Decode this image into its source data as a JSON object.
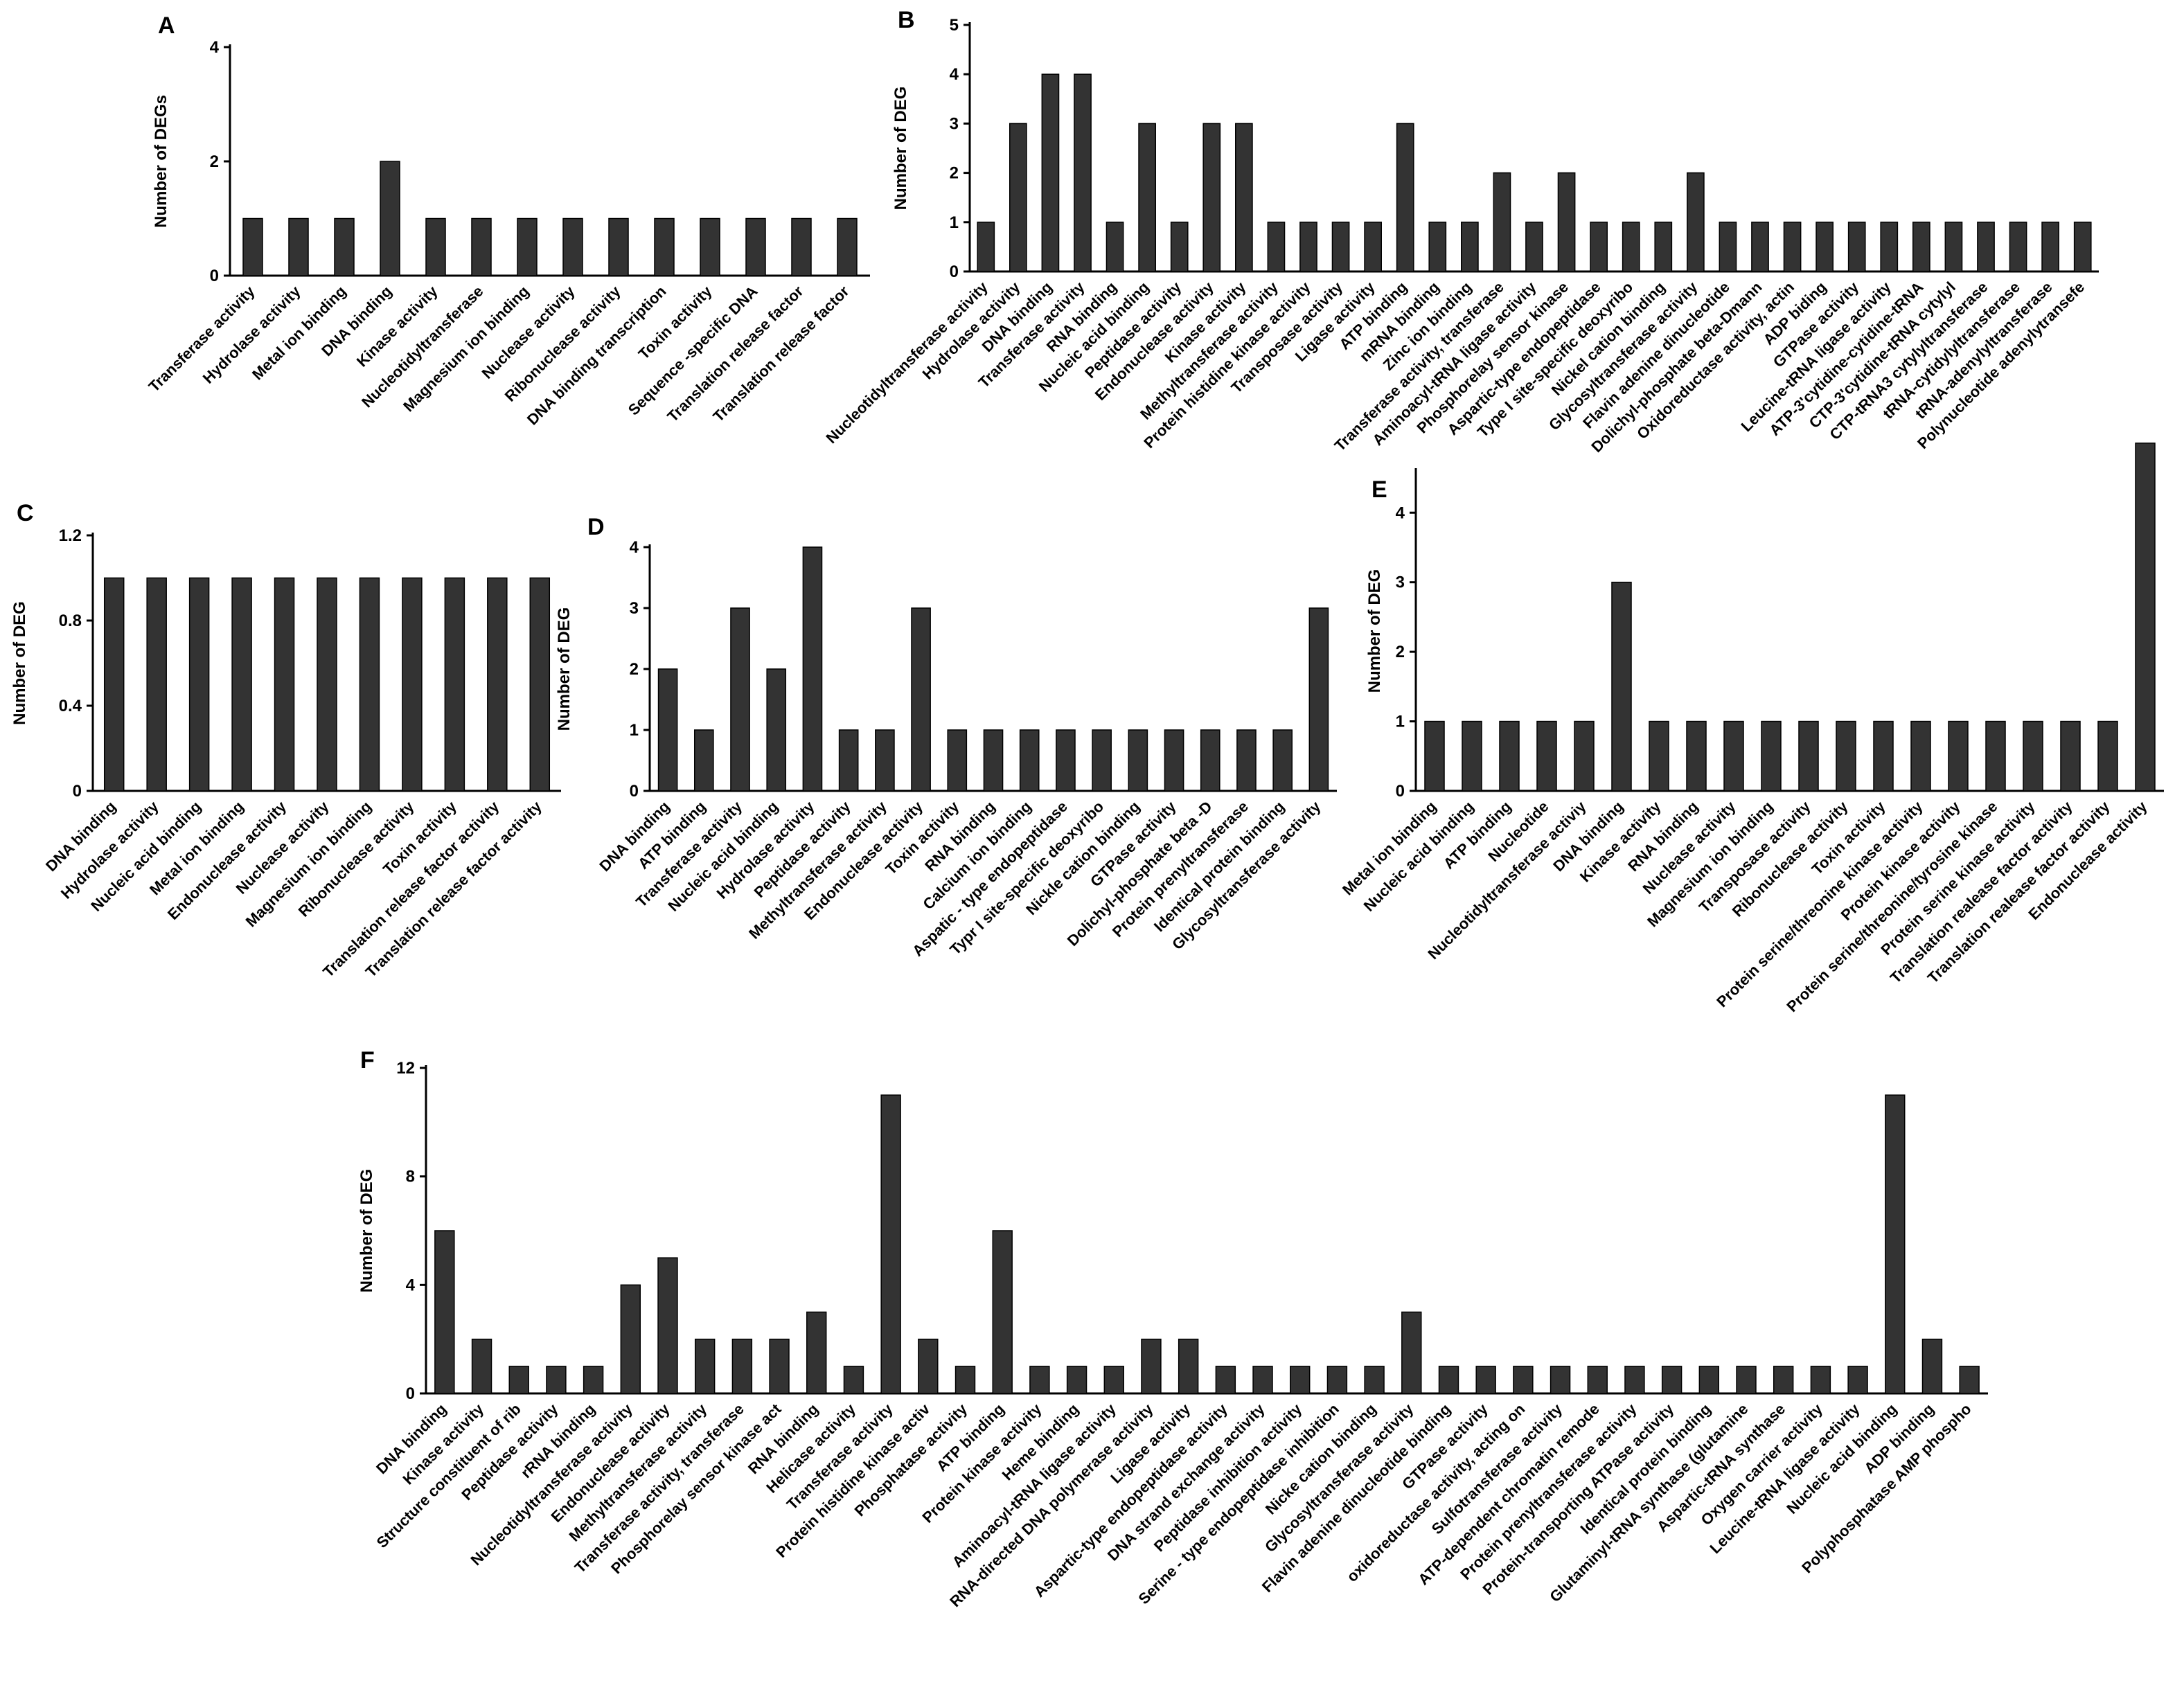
{
  "figure": {
    "colors": {
      "bar": "#333333",
      "axis": "#000000",
      "background": "#ffffff"
    }
  },
  "chart_data": [
    {
      "panel": "A",
      "type": "bar",
      "ylabel": "Number of DEGs",
      "ylim": [
        0,
        4
      ],
      "yticks": [
        0,
        2,
        4
      ],
      "grid": false,
      "categories": [
        "Transferase activity",
        "Hydrolase activity",
        "Metal ion binding",
        "DNA binding",
        "Kinase activity",
        "Nucleotidyltransferase",
        "Magnesium ion binding",
        "Nuclease activity",
        "Ribonuclease activity",
        "DNA binding transcription",
        "Toxin activity",
        "Sequence -specific DNA",
        "Translation release factor",
        "Translation release factor"
      ],
      "values": [
        1,
        1,
        1,
        2,
        1,
        1,
        1,
        1,
        1,
        1,
        1,
        1,
        1,
        1
      ]
    },
    {
      "panel": "B",
      "type": "bar",
      "ylabel": "Number of DEG",
      "ylim": [
        0,
        5
      ],
      "yticks": [
        0,
        1,
        2,
        3,
        4,
        5
      ],
      "grid": false,
      "categories": [
        "Nucleotidyltransferase activity",
        "Hydrolase activity",
        "DNA binding",
        "Transferase activity",
        "RNA binding",
        "Nucleic acid binding",
        "Peptidase activity",
        "Endonuclease activity",
        "Kinase activity",
        "Methyltransferase activity",
        "Protein histidine kinase activity",
        "Transposase activity",
        "Ligase activity",
        "ATP binding",
        "mRNA binding",
        "Zinc ion binding",
        "Transferase activity, transferase",
        "Aminoacyl-tRNA ligase activity",
        "Phosphorelay sensor kinase",
        "Aspartic-type endopeptidase",
        "Type I site-specific deoxyribo",
        "Nickel cation binding",
        "Glycosyltransferase activity",
        "Flavin adenine dinucleotide",
        "Dolichyl-phosphate beta-Dmann",
        "Oxidoreductase activity, actin",
        "ADP biding",
        "GTPase activity",
        "Leucine-tRNA ligase activity",
        "ATP-3'cytidine-cytidine-tRNA",
        "CTP-3'cytidine-tRNA cytylyl",
        "CTP-tRNA3 cytylyltransferase",
        "tRNA-cytidylyltransferase",
        "tRNA-adenylyltransferase",
        "Polynucleotide adenylytransefe"
      ],
      "values": [
        1,
        3,
        4,
        4,
        1,
        3,
        1,
        3,
        3,
        1,
        1,
        1,
        1,
        3,
        1,
        1,
        2,
        1,
        2,
        1,
        1,
        1,
        2,
        1,
        1,
        1,
        1,
        1,
        1,
        1,
        1,
        1,
        1,
        1,
        1
      ]
    },
    {
      "panel": "C",
      "type": "bar",
      "ylabel": "Number of DEG",
      "ylim": [
        0,
        1.2
      ],
      "yticks": [
        0,
        0.4,
        0.8,
        1.2
      ],
      "grid": false,
      "categories": [
        "DNA binding",
        "Hydrolase activity",
        "Nucleic acid binding",
        "Metal ion binding",
        "Endonuclease activity",
        "Nuclease  activity",
        "Magnesium ion binding",
        "Ribonuclease activity",
        "Toxin activity",
        "Translation release factor activity",
        "Translation release factor activity"
      ],
      "values": [
        1,
        1,
        1,
        1,
        1,
        1,
        1,
        1,
        1,
        1,
        1
      ]
    },
    {
      "panel": "D",
      "type": "bar",
      "ylabel": "Number of DEG",
      "ylim": [
        0,
        4
      ],
      "yticks": [
        0,
        1,
        2,
        3,
        4
      ],
      "grid": false,
      "categories": [
        "DNA binding",
        "ATP binding",
        "Transferase activity",
        "Nucleic acid binding",
        "Hydrolase activity",
        "Peptidase activity",
        "Methyltransferase activity",
        "Endonuclease activity",
        "Toxin activity",
        "RNA binding",
        "Calcium ion binding",
        "Aspatic - type endopeptidase",
        "Typr I site-specific deoxyribo",
        "Nickle cation binding",
        "GTPase activity",
        "Dolichyl-phosphate beta -D",
        "Protein prenyltransferase",
        "Identical protein binding",
        "Glycosyltransferase activity"
      ],
      "values": [
        2,
        1,
        3,
        2,
        4,
        1,
        1,
        3,
        1,
        1,
        1,
        1,
        1,
        1,
        1,
        1,
        1,
        1,
        3
      ]
    },
    {
      "panel": "E",
      "type": "bar",
      "ylabel": "Number of DEG",
      "ylim": [
        0,
        4.6
      ],
      "yticks": [
        0,
        1,
        2,
        3,
        4
      ],
      "grid": false,
      "categories": [
        "Metal ion binding",
        "Nucleic acid binding",
        "ATP binding",
        "Nucleotide",
        "Nucleotidyltransferase activiy",
        "DNA binding",
        "Kinase activity",
        "RNA binding",
        "Nuclease activity",
        "Magnesium ion binding",
        "Transposase activity",
        "Ribonuclease activity",
        "Toxin activity",
        "Protein serine/threonine kinase activity",
        "Protein kinase activity",
        "Protein serine/threonine/tyrosine kinase",
        "Protein serine kinase activity",
        "Translation realease factor activity",
        "Translation realease factor activity",
        "Endonuclease activity"
      ],
      "values": [
        1,
        1,
        1,
        1,
        1,
        3,
        1,
        1,
        1,
        1,
        1,
        1,
        1,
        1,
        1,
        1,
        1,
        1,
        1,
        5
      ]
    },
    {
      "panel": "F",
      "type": "bar",
      "ylabel": "Number of DEG",
      "ylim": [
        0,
        12
      ],
      "yticks": [
        0,
        4,
        8,
        12
      ],
      "grid": false,
      "categories": [
        "DNA binding",
        "Kinase activity",
        "Structure constituent of rib",
        "Peptidase activity",
        "rRNA binding",
        "Nucleotidyltransferase activity",
        "Endonuclease activity",
        "Methyltransferase activity",
        "Transferase activity, transferase",
        "Phosphorelay sensor kinase act",
        "RNA binding",
        "Helicase activity",
        "Transferase activity",
        "Protein histidine kinase activ",
        "Phosphatase activity",
        "ATP binding",
        "Protein kinase activity",
        "Heme binding",
        "Aminoacyl-tRNA ligase activity",
        "RNA-directed DNA polymerase activity",
        "Ligase activity",
        "Aspartic-type endopeptidase activity",
        "DNA strand exchange activity",
        "Peptidase inhibition activity",
        "Serine - type endopeptidase inhibition",
        "Nicke cation binding",
        "Glycosyltransferase activity",
        "Flavin adenine dinucleotide binding",
        "GTPase activity",
        "oxidoreductase activity, acting on",
        "Sulfotransferase activity",
        "ATP-dependent chromatin remode",
        "Protein prenyltransferase activity",
        "Protein-transporting ATPase activity",
        "Identical protein binding",
        "Glutaminyl-tRNA synthase (glutamine",
        "Aspartic-tRNA synthase",
        "Oxygen carrier activity",
        "Leucine-tRNA ligase activity",
        "Nucleic acid binding",
        "ADP binding",
        "Polyphosphatase AMP phospho"
      ],
      "values": [
        6,
        2,
        1,
        1,
        1,
        4,
        5,
        2,
        2,
        2,
        3,
        1,
        11,
        2,
        1,
        6,
        1,
        1,
        1,
        2,
        2,
        1,
        1,
        1,
        1,
        1,
        3,
        1,
        1,
        1,
        1,
        1,
        1,
        1,
        1,
        1,
        1,
        1,
        1,
        11,
        2,
        1
      ]
    }
  ]
}
